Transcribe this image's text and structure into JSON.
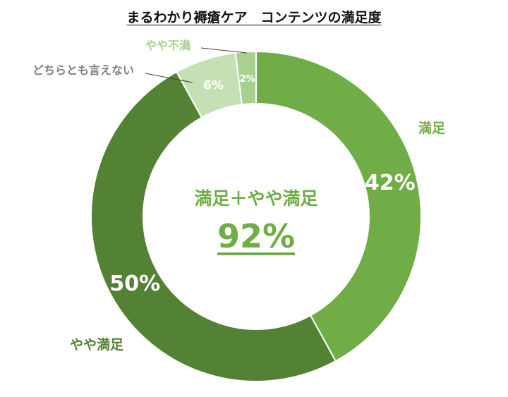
{
  "chart_data": {
    "type": "pie",
    "title": "まるわかり褥瘡ケア　コンテンツの満足度",
    "slices": [
      {
        "label": "満足",
        "value": 42,
        "value_label": "42%",
        "color": "#70AD47",
        "label_color": "#70AD47",
        "value_text_color": "#ffffff",
        "label_side": "outside-right"
      },
      {
        "label": "やや満足",
        "value": 50,
        "value_label": "50%",
        "color": "#548235",
        "label_color": "#548235",
        "value_text_color": "#ffffff",
        "label_side": "outside-left-bottom"
      },
      {
        "label": "どちらとも言えない",
        "value": 6,
        "value_label": "6%",
        "color": "#C5E0B4",
        "label_color": "#7F7F7F",
        "value_text_color": "#ffffff",
        "label_side": "leader-left"
      },
      {
        "label": "やや不満",
        "value": 2,
        "value_label": "2%",
        "color": "#A9D18E",
        "label_color": "#A9D18E",
        "value_text_color": "#ffffff",
        "label_side": "leader-top"
      }
    ],
    "center_label": "満足＋やや満足",
    "center_value": "92%",
    "center_color": "#70AD47",
    "legend": "none"
  }
}
